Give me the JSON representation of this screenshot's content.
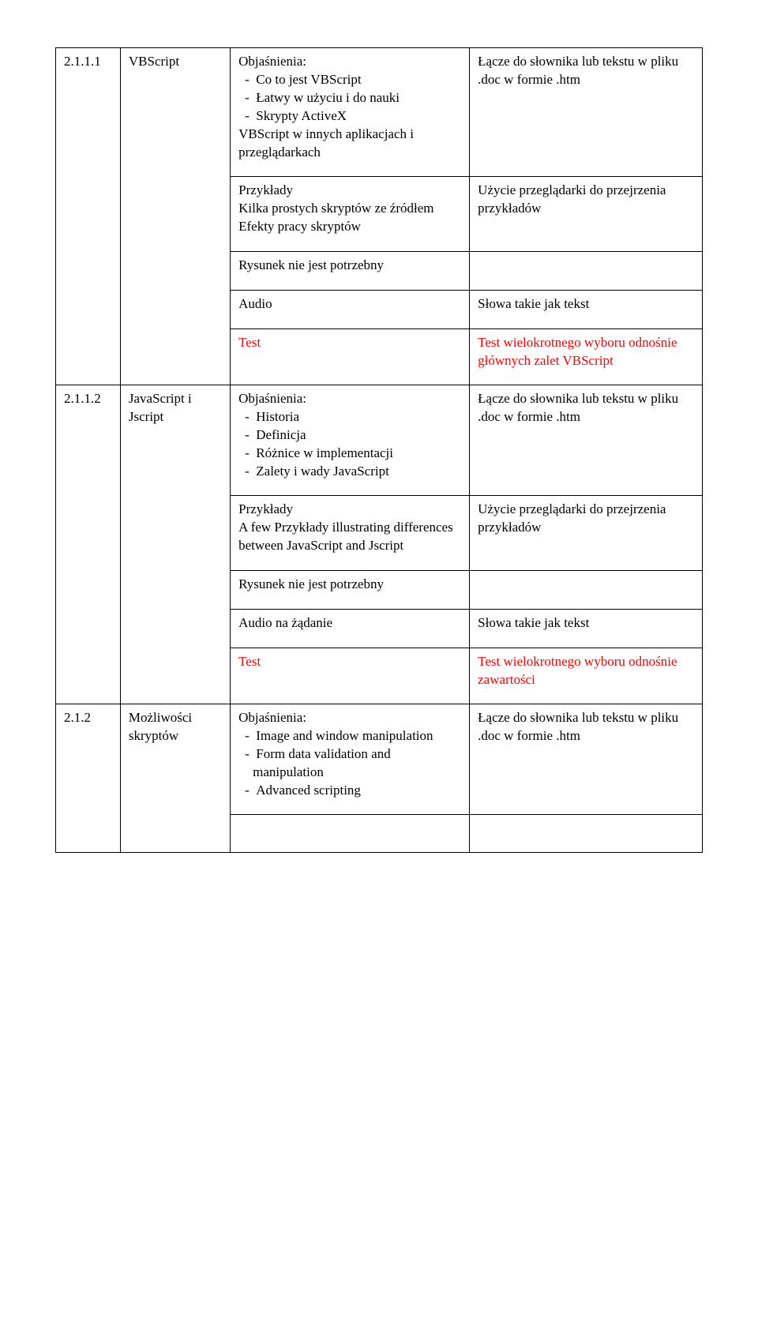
{
  "rows": [
    {
      "num": "2.1.1.1",
      "topic": "VBScript",
      "cells": [
        {
          "left": "Objaśnienia:\n- Co to jest VBScript\n- Łatwy w użyciu i do nauki\n- Skrypty ActiveX\nVBScript w innych aplikacjach i przeglądarkach",
          "right": "Łącze do słownika lub tekstu w pliku .doc w formie .htm"
        },
        {
          "left": "Przykłady\nKilka prostych skryptów ze źródłem\nEfekty pracy skryptów",
          "right": "Użycie przeglądarki do przejrzenia przykładów"
        },
        {
          "left": "Rysunek nie jest potrzebny",
          "right": ""
        },
        {
          "left": "Audio",
          "right": "Słowa takie jak tekst"
        },
        {
          "left": "Test",
          "left_red": true,
          "right": "Test wielokrotnego wyboru odnośnie głównych zalet VBScript",
          "right_red": true
        }
      ]
    },
    {
      "num": "2.1.1.2",
      "topic": "JavaScript i Jscript",
      "cells": [
        {
          "left": "Objaśnienia:\n- Historia\n- Definicja\n- Różnice w implementacji\n- Zalety i wady JavaScript",
          "right": "Łącze do słownika lub tekstu w pliku .doc w formie .htm"
        },
        {
          "left": "Przykłady\nA few Przykłady illustrating differences between JavaScript and Jscript",
          "right": "Użycie przeglądarki do przejrzenia przykładów"
        },
        {
          "left": "Rysunek nie jest potrzebny",
          "right": ""
        },
        {
          "left": "Audio na żądanie",
          "right": "Słowa takie jak tekst"
        },
        {
          "left": "Test",
          "left_red": true,
          "right": "Test wielokrotnego wyboru odnośnie zawartości",
          "right_red": true
        }
      ]
    },
    {
      "num": "2.1.2",
      "topic": "Możliwości skryptów",
      "cells": [
        {
          "left": "Objaśnienia:\n- Image and window manipulation\n- Form data validation and manipulation\n- Advanced scripting",
          "right": "Łącze do słownika lub tekstu w pliku .doc w formie .htm"
        },
        {
          "left": "",
          "right": ""
        }
      ]
    }
  ]
}
